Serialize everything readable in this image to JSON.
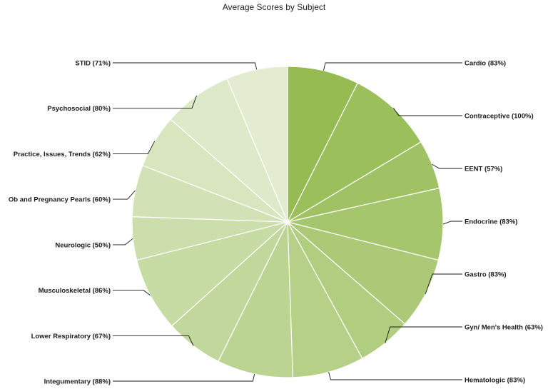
{
  "chart_data": {
    "type": "pie",
    "title": "Average Scores by Subject",
    "categories": [
      "Cardio",
      "Contraceptive",
      "EENT",
      "Endocrine",
      "Gastro",
      "Gyn/ Men's Health",
      "Hematologic",
      "Integumentary",
      "Lower Respiratory",
      "Musculoskeletal",
      "Neurologic",
      "Ob and Pregnancy Pearls",
      "Practice, Issues, Trends",
      "Psychosocial",
      "STID"
    ],
    "values": [
      83,
      100,
      57,
      83,
      83,
      63,
      83,
      88,
      67,
      86,
      50,
      60,
      62,
      80,
      71
    ],
    "labels": [
      "Cardio (83%)",
      "Contraceptive (100%)",
      "EENT (57%)",
      "Endocrine (83%)",
      "Gastro (83%)",
      "Gyn/ Men's Health (63%)",
      "Hematologic (83%)",
      "Integumentary (88%)",
      "Lower Respiratory (67%)",
      "Musculoskeletal (86%)",
      "Neurologic (50%)",
      "Ob and Pregnancy Pearls (60%)",
      "Practice, Issues, Trends (62%)",
      "Psychosocial (80%)",
      "STID (71%)"
    ],
    "colors": {
      "start": "#95bb52",
      "end": "#e3ecd1",
      "slice_border": "#ffffff",
      "leader": "#1a1a1a"
    },
    "legend": "none"
  }
}
